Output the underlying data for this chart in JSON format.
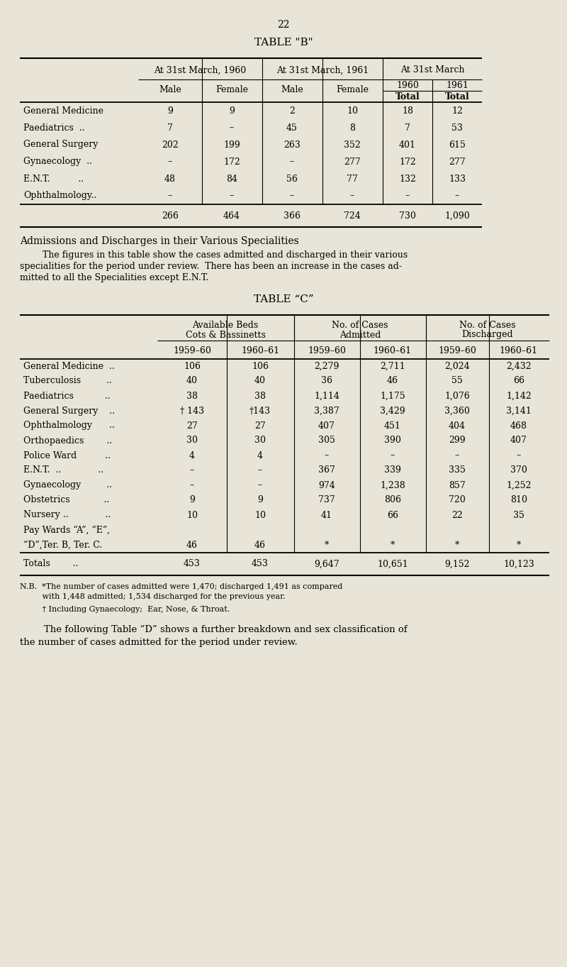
{
  "page_number": "22",
  "bg_color": "#e8e4d8",
  "table_b_title": "TABLE \"B\"",
  "section_title": "Admissions and Discharges in their Various Specialities",
  "section_body1": "        The figures in this table show the cases admitted and discharged in their various",
  "section_body2": "specialities for the period under review.  There has been an increase in the cases ad-",
  "section_body3": "mitted to all the Specialities except E.N.T.",
  "table_c_title": "TABLE “C”",
  "table_b_rows": [
    [
      "General Medicine",
      "*",
      "9",
      "9",
      "2",
      "10",
      "18",
      "12"
    ],
    [
      "Paediatrics  ..",
      "",
      "7",
      "–",
      "45",
      "8",
      "7",
      "53"
    ],
    [
      "General Surgery",
      "",
      "202",
      "199",
      "263",
      "352",
      "401",
      "615"
    ],
    [
      "Gynaecology  ..",
      "",
      "–",
      "172",
      "–",
      "277",
      "172",
      "277"
    ],
    [
      "E.N.T.          ..",
      "",
      "48",
      "84",
      "56",
      "77",
      "132",
      "133"
    ],
    [
      "Ophthalmology..",
      "",
      "–",
      "–",
      "–",
      "–",
      "–",
      "–"
    ]
  ],
  "table_b_totals": [
    "266",
    "464",
    "366",
    "724",
    "730",
    "1,090"
  ],
  "table_c_rows": [
    [
      "General Medicine  ..",
      "106",
      "106",
      "2,279",
      "2,711",
      "2,024",
      "2,432"
    ],
    [
      "Tuberculosis         ..",
      "40",
      "40",
      "36",
      "46",
      "55",
      "66"
    ],
    [
      "Paediatrics           ..",
      "38",
      "38",
      "1,114",
      "1,175",
      "1,076",
      "1,142"
    ],
    [
      "General Surgery    ..",
      "† 143",
      "†143",
      "3,387",
      "3,429",
      "3,360",
      "3,141"
    ],
    [
      "Ophthalmology      ..",
      "27",
      "27",
      "407",
      "451",
      "404",
      "468"
    ],
    [
      "Orthopaedics        ..",
      "30",
      "30",
      "305",
      "390",
      "299",
      "407"
    ],
    [
      "Police Ward          ..",
      "4",
      "4",
      "–",
      "–",
      "–",
      "–"
    ],
    [
      "E.N.T.  ..             ..",
      "–",
      "–",
      "367",
      "339",
      "335",
      "370"
    ],
    [
      "Gynaecology         ..",
      "–",
      "–",
      "974",
      "1,238",
      "857",
      "1,252"
    ],
    [
      "Obstetrics            ..",
      "9",
      "9",
      "737",
      "806",
      "720",
      "810"
    ],
    [
      "Nursery ..             ..",
      "10",
      "10",
      "41",
      "66",
      "22",
      "35"
    ],
    [
      "Pay Wards “A”, “E”,",
      "",
      "",
      "",
      "",
      "",
      ""
    ],
    [
      "“D”,Ter. B, Ter. C.",
      "46",
      "46",
      "*",
      "*",
      "*",
      "*"
    ]
  ],
  "table_c_totals": [
    "Totals        ..",
    "453",
    "453",
    "9,647",
    "10,651",
    "9,152",
    "10,123"
  ],
  "nb_line1": "N.B.  *The number of cases admitted were 1,470; discharged 1,491 as compared",
  "nb_line2": "         with 1,448 admitted; 1,534 discharged for the previous year.",
  "nb_line3": "         † Including Gynaecology;  Ear, Nose, & Throat.",
  "footer_line1": "        The following Table “D” shows a further breakdown and sex classification of",
  "footer_line2": "the number of cases admitted for the period under review."
}
